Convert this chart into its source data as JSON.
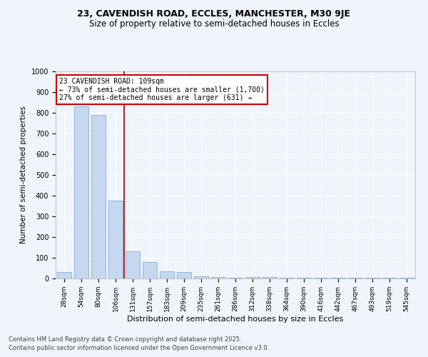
{
  "title1": "23, CAVENDISH ROAD, ECCLES, MANCHESTER, M30 9JE",
  "title2": "Size of property relative to semi-detached houses in Eccles",
  "xlabel": "Distribution of semi-detached houses by size in Eccles",
  "ylabel": "Number of semi-detached properties",
  "categories": [
    "28sqm",
    "54sqm",
    "80sqm",
    "106sqm",
    "131sqm",
    "157sqm",
    "183sqm",
    "209sqm",
    "235sqm",
    "261sqm",
    "286sqm",
    "312sqm",
    "338sqm",
    "364sqm",
    "390sqm",
    "416sqm",
    "442sqm",
    "467sqm",
    "493sqm",
    "519sqm",
    "545sqm"
  ],
  "values": [
    30,
    830,
    790,
    375,
    130,
    80,
    35,
    30,
    12,
    8,
    5,
    8,
    8,
    5,
    5,
    5,
    5,
    5,
    5,
    5,
    5
  ],
  "bar_color": "#c5d8f0",
  "bar_edge_color": "#7bafd4",
  "vline_color": "#990000",
  "annotation_title": "23 CAVENDISH ROAD: 109sqm",
  "annotation_line1": "← 73% of semi-detached houses are smaller (1,700)",
  "annotation_line2": "27% of semi-detached houses are larger (631) →",
  "annotation_box_color": "#ffffff",
  "annotation_box_edge": "#cc0000",
  "ylim": [
    0,
    1000
  ],
  "yticks": [
    0,
    100,
    200,
    300,
    400,
    500,
    600,
    700,
    800,
    900,
    1000
  ],
  "footer1": "Contains HM Land Registry data © Crown copyright and database right 2025.",
  "footer2": "Contains public sector information licensed under the Open Government Licence v3.0.",
  "bg_color": "#f0f4fb",
  "plot_bg_color": "#f0f4fb",
  "grid_color": "#ffffff",
  "title1_fontsize": 9,
  "title2_fontsize": 8.5
}
